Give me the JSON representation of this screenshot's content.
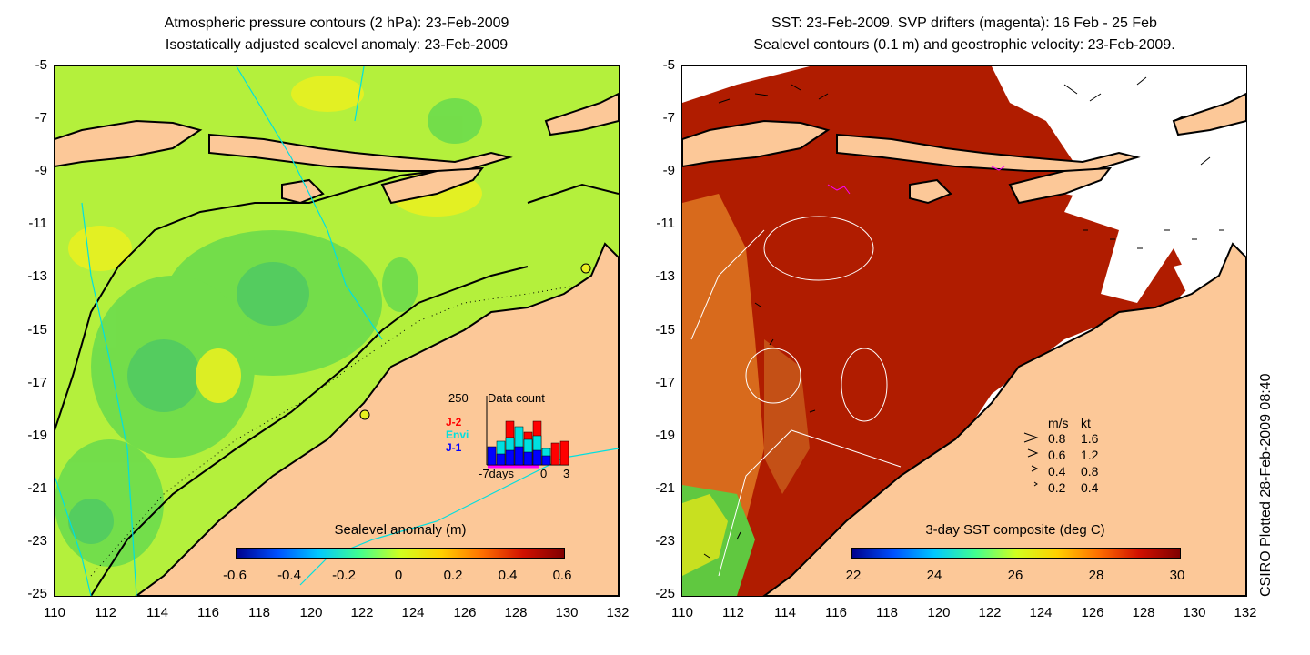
{
  "left_panel": {
    "title_line1": "Atmospheric pressure contours (2 hPa): 23-Feb-2009",
    "title_line2": "Isostatically adjusted sealevel anomaly: 23-Feb-2009",
    "colorbar_title": "Sealevel anomaly (m)",
    "colorbar_ticks": [
      "-0.6",
      "-0.4",
      "-0.2",
      "0",
      "0.2",
      "0.4",
      "0.6"
    ],
    "inset": {
      "max_label": "250",
      "title": "Data count",
      "x_left": "-7days",
      "x_mid": "0",
      "x_right": "3",
      "missions": [
        {
          "name": "J-2",
          "color": "#ff0000"
        },
        {
          "name": "Envi",
          "color": "#00e0e0"
        },
        {
          "name": "J-1",
          "color": "#0000ff"
        }
      ]
    }
  },
  "right_panel": {
    "title_line1": "SST: 23-Feb-2009. SVP drifters (magenta): 16 Feb - 25 Feb",
    "title_line2": "Sealevel contours (0.1 m) and geostrophic velocity: 23-Feb-2009.",
    "colorbar_title": "3-day SST composite (deg C)",
    "colorbar_ticks": [
      "22",
      "24",
      "26",
      "28",
      "30"
    ],
    "speed_legend": {
      "header_ms": "m/s",
      "header_kt": "kt",
      "rows": [
        {
          "ms": "0.8",
          "kt": "1.6"
        },
        {
          "ms": "0.6",
          "kt": "1.2"
        },
        {
          "ms": "0.4",
          "kt": "0.8"
        },
        {
          "ms": "0.2",
          "kt": "0.4"
        }
      ]
    }
  },
  "axes": {
    "y_ticks": [
      "-5",
      "-7",
      "-9",
      "-11",
      "-13",
      "-15",
      "-17",
      "-19",
      "-21",
      "-23",
      "-25"
    ],
    "x_ticks": [
      "110",
      "112",
      "114",
      "116",
      "118",
      "120",
      "122",
      "124",
      "126",
      "128",
      "130",
      "132"
    ]
  },
  "credit": "CSIRO Plotted 28-Feb-2009 08:40",
  "colors": {
    "land": "#fcc898",
    "sla_base": "#b4f03c",
    "sst_base": "#b01c00",
    "contour": "#00e0e0"
  }
}
